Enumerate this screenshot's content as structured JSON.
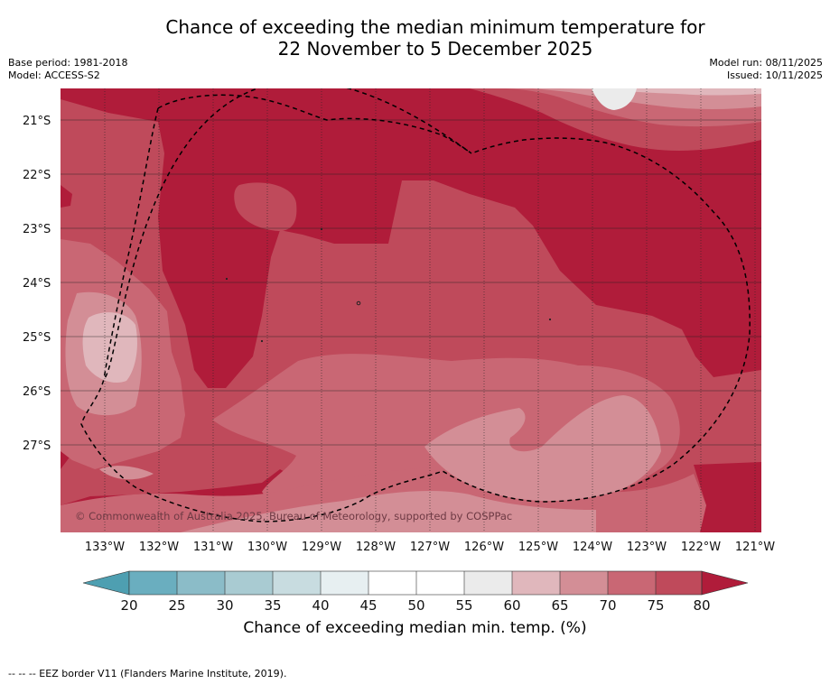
{
  "title": {
    "line1": "Chance of exceeding the median minimum temperature for",
    "line2": "22 November to 5 December 2025"
  },
  "meta": {
    "base_period": "Base period: 1981-2018",
    "model": "Model: ACCESS-S2",
    "model_run": "Model run: 08/11/2025",
    "issued": "Issued: 10/11/2025"
  },
  "copyright": "© Commonwealth of Australia 2025, Bureau of Meteorology, supported by COSPPac",
  "map": {
    "latitude_labels": [
      "21°S",
      "22°S",
      "23°S",
      "24°S",
      "25°S",
      "26°S",
      "27°S"
    ],
    "longitude_labels": [
      "133°W",
      "132°W",
      "131°W",
      "130°W",
      "129°W",
      "128°W",
      "127°W",
      "126°W",
      "125°W",
      "124°W",
      "123°W",
      "122°W",
      "121°W"
    ],
    "eez_border_style": "dashed"
  },
  "colorbar": {
    "title": "Chance of exceeding median min. temp. (%)",
    "ticks": [
      "20",
      "25",
      "30",
      "35",
      "40",
      "45",
      "50",
      "55",
      "60",
      "65",
      "70",
      "75",
      "80"
    ],
    "colors": {
      "below_20": "#4e9fb1",
      "20_25": "#6aaebf",
      "25_30": "#8bbcc8",
      "30_35": "#a9cbd2",
      "35_40": "#c8dce0",
      "40_45": "#e7eff1",
      "45_50": "#ffffff",
      "50_55": "#ffffff",
      "55_60": "#ebebeb",
      "60_65": "#e0b7bc",
      "65_70": "#d38e96",
      "70_75": "#c96774",
      "75_80": "#bf4a5b",
      "above_80": "#b01c3a"
    }
  },
  "footnote": "-- -- -- EEZ border V11 (Flanders Marine Institute, 2019)."
}
